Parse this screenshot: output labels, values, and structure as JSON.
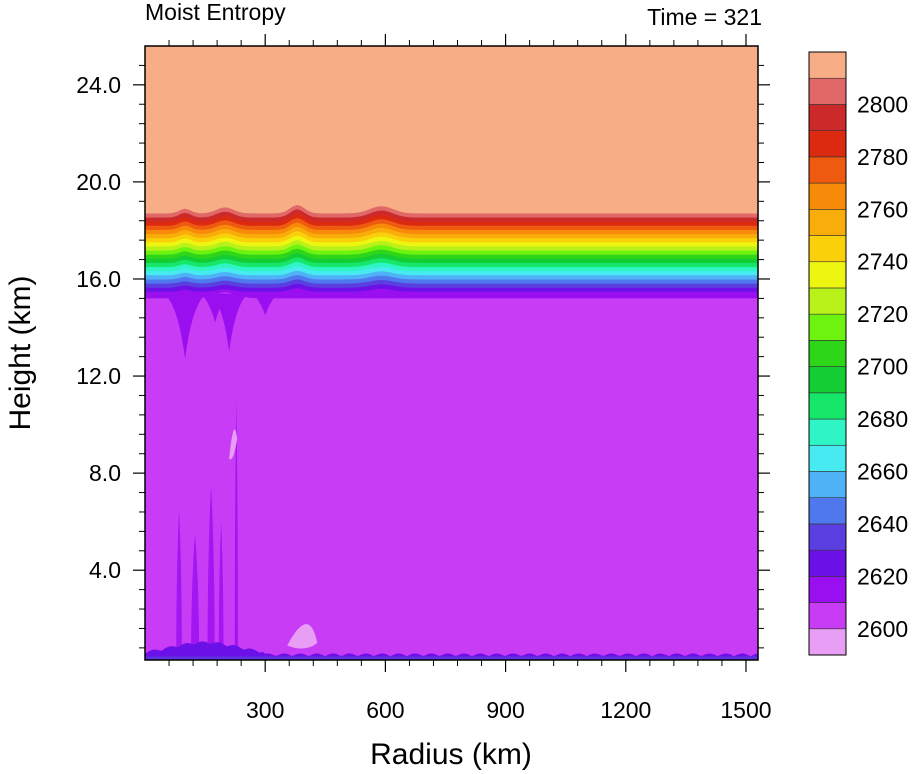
{
  "chart_data": {
    "type": "heatmap",
    "title_left": "Moist Entropy",
    "title_right": "Time = 321",
    "xlabel": "Radius (km)",
    "ylabel": "Height (km)",
    "xlim": [
      0,
      1530
    ],
    "ylim": [
      0.3,
      25.6
    ],
    "xticks": [
      300,
      600,
      900,
      1200,
      1500
    ],
    "xtick_labels": [
      "300",
      "600",
      "900",
      "1200",
      "1500"
    ],
    "yticks": [
      4,
      8,
      12,
      16,
      20,
      24
    ],
    "ytick_labels": [
      "4.0",
      "8.0",
      "12.0",
      "16.0",
      "20.0",
      "24.0"
    ],
    "colorbar": {
      "levels": [
        2590,
        2600,
        2610,
        2620,
        2630,
        2640,
        2650,
        2660,
        2670,
        2680,
        2690,
        2700,
        2710,
        2720,
        2730,
        2740,
        2750,
        2760,
        2770,
        2780,
        2790,
        2800,
        2810
      ],
      "colors": [
        "#e89ef4",
        "#c93cf5",
        "#9a0ff0",
        "#6c10e8",
        "#5b3ee0",
        "#4f78ee",
        "#4fb2f7",
        "#47eaf0",
        "#2ff5c4",
        "#16e66a",
        "#14cc34",
        "#2ed61a",
        "#6ef20f",
        "#b8f21a",
        "#eef510",
        "#fad00a",
        "#f9ad0a",
        "#f88a0a",
        "#ee5a10",
        "#dc2a10",
        "#cc2a2a",
        "#e06868",
        "#f7ae86"
      ],
      "labels": [
        "2600",
        "2620",
        "2640",
        "2660",
        "2680",
        "2700",
        "2720",
        "2740",
        "2760",
        "2780",
        "2800"
      ]
    },
    "fields": {
      "stratosphere_value_above_km": 18.7,
      "stratosphere_level": 2810,
      "troposphere_level": 2610,
      "transition_layer_km": [
        15.3,
        18.7
      ]
    }
  }
}
